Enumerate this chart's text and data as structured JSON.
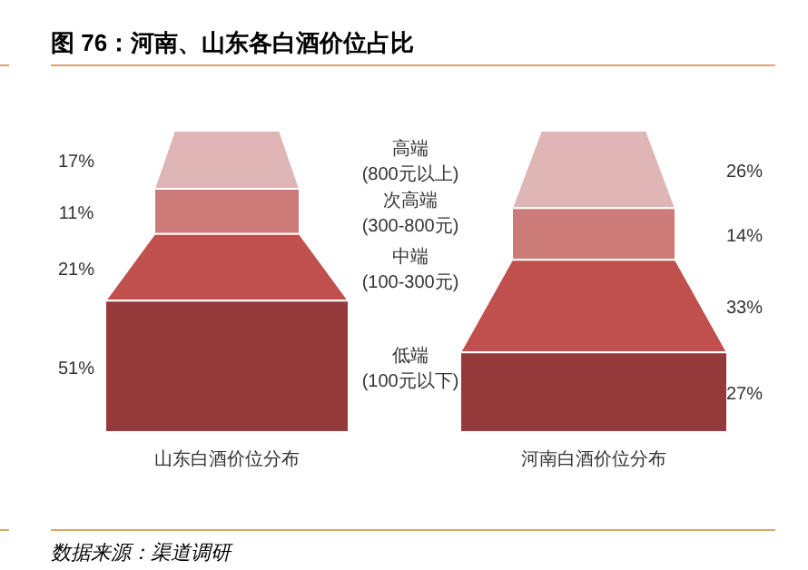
{
  "chart_data": {
    "type": "other",
    "title": "图 76：河南、山东各白酒价位占比",
    "categories": [
      "高端\n(800元以上)",
      "次高端\n(300-800元)",
      "中端\n(100-300元)",
      "低端\n(100元以下)"
    ],
    "colors": [
      "#dfb5b5",
      "#cd7b79",
      "#c0504d",
      "#953a3a"
    ],
    "series": [
      {
        "name": "山东白酒价位分布",
        "values": [
          17,
          11,
          21,
          51
        ],
        "value_labels": [
          "17%",
          "11%",
          "21%",
          "51%"
        ]
      },
      {
        "name": "河南白酒价位分布",
        "values": [
          26,
          14,
          33,
          27
        ],
        "value_labels": [
          "26%",
          "14%",
          "33%",
          "27%"
        ]
      }
    ],
    "annotations": [
      "数据来源：渠道调研"
    ]
  }
}
